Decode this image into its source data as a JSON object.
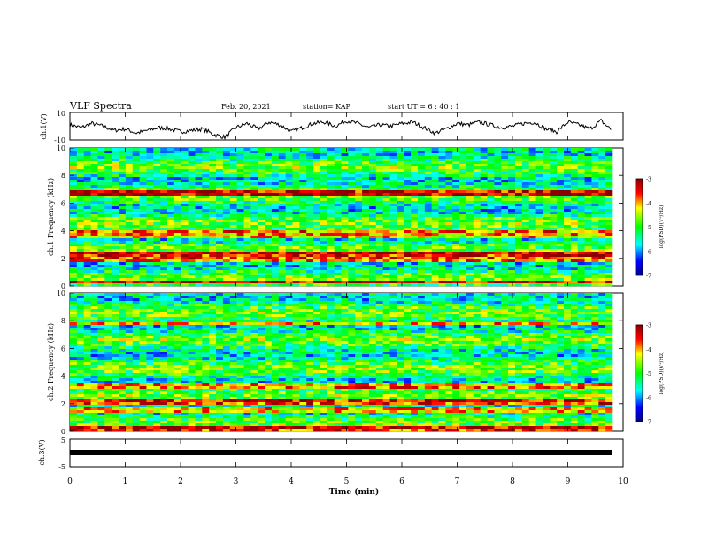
{
  "header": {
    "title": "VLF Spectra",
    "date": "Feb. 20, 2021",
    "station": "station= KAP",
    "start": "start  UT =   6 : 40 : 1"
  },
  "colors": {
    "ch1_trace": "#000000",
    "ch3_bar": "#000000",
    "colorbar_high": "#8b0000",
    "colorbar_mid": "#00ff00",
    "colorbar_low": "#00008b"
  },
  "chart_data": [
    {
      "type": "line",
      "panel": "ch1-waveform",
      "ylabel": "ch.1(V)",
      "ylim": [
        -10,
        10
      ],
      "yticks": [
        "10",
        "-10"
      ],
      "xlim": [
        0,
        10
      ],
      "series": [
        {
          "x": [
            0,
            0.2,
            0.4,
            0.6,
            0.8,
            1.0,
            1.2,
            1.4,
            1.6,
            1.8,
            2.0,
            2.2,
            2.4,
            2.6,
            2.8,
            3.0,
            3.2,
            3.4,
            3.6,
            3.8,
            4.0,
            4.2,
            4.4,
            4.6,
            4.8,
            5.0,
            5.2,
            5.4,
            5.6,
            5.8,
            6.0,
            6.2,
            6.4,
            6.6,
            6.8,
            7.0,
            7.2,
            7.4,
            7.6,
            7.8,
            8.0,
            8.2,
            8.4,
            8.6,
            8.8,
            9.0,
            9.2,
            9.4,
            9.6,
            9.8
          ],
          "values": [
            1,
            -1,
            2,
            0,
            -3,
            -2,
            -5,
            -3,
            -1,
            -2,
            -4,
            -3,
            -2,
            -6,
            -8,
            -1,
            2,
            -2,
            3,
            1,
            -4,
            -1,
            2,
            3,
            0,
            4,
            2,
            -1,
            1,
            0,
            2,
            3,
            -1,
            -5,
            -2,
            2,
            1,
            3,
            1,
            -1,
            0,
            2,
            3,
            -2,
            -4,
            3,
            1,
            -2,
            4,
            -3
          ]
        }
      ]
    },
    {
      "type": "heatmap",
      "panel": "ch1-spectrogram",
      "ylabel": "ch.1  Frequency (kHz)",
      "ylim": [
        0,
        10
      ],
      "yticks": [
        "0",
        "2",
        "4",
        "6",
        "8",
        "10"
      ],
      "xlim": [
        0,
        10
      ],
      "colorbar_label": "log(PSD)(V²/Hz)",
      "zlim": [
        -7,
        -3
      ],
      "zticks": [
        "-3",
        "-4",
        "-5",
        "-6",
        "-7"
      ],
      "dominant_bands_khz": [
        0.3,
        2.0,
        2.3,
        3.6,
        3.9,
        6.7
      ],
      "mean_level": -5.0
    },
    {
      "type": "heatmap",
      "panel": "ch2-spectrogram",
      "ylabel": "ch.2  Frequency (kHz)",
      "ylim": [
        0,
        10
      ],
      "yticks": [
        "0",
        "2",
        "4",
        "6",
        "8",
        "10"
      ],
      "xlim": [
        0,
        10
      ],
      "colorbar_label": "log(PSD)(V²/Hz)",
      "zlim": [
        -7,
        -3
      ],
      "zticks": [
        "-3",
        "-4",
        "-5",
        "-6",
        "-7"
      ],
      "dominant_bands_khz": [
        0.2,
        1.5,
        2.1,
        3.3,
        7.8
      ],
      "mean_level": -5.2
    },
    {
      "type": "line",
      "panel": "ch3-waveform",
      "ylabel": "ch.3(V)",
      "ylim": [
        -5,
        5
      ],
      "yticks": [
        "5",
        "-5"
      ],
      "xlim": [
        0,
        10
      ],
      "xlabel": "Time  (min)",
      "xticks": [
        "0",
        "1",
        "2",
        "3",
        "4",
        "5",
        "6",
        "7",
        "8",
        "9",
        "10"
      ],
      "series": [
        {
          "x": [
            0,
            9.8
          ],
          "values": [
            0,
            0
          ]
        }
      ]
    }
  ]
}
